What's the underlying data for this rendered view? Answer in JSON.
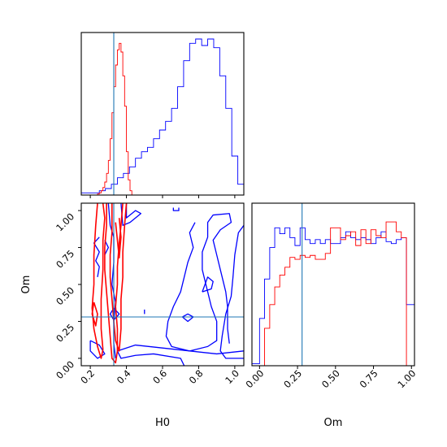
{
  "chart_data": {
    "type": "corner",
    "parameters": [
      "H0",
      "Om"
    ],
    "truths": {
      "H0": 0.33,
      "Om": 0.28
    },
    "colors": {
      "blue": "#0000ff",
      "red": "#ff0000",
      "truth": "#1f77b4"
    },
    "panels": {
      "h0_hist": {
        "xlim": [
          0.15,
          1.05
        ],
        "bins": [
          0.15,
          0.1833,
          0.2167,
          0.25,
          0.2833,
          0.3167,
          0.35,
          0.3833,
          0.4167,
          0.45,
          0.4833,
          0.5167,
          0.55,
          0.5833,
          0.6167,
          0.65,
          0.6833,
          0.7167,
          0.75,
          0.7833,
          0.8167,
          0.85,
          0.8833,
          0.9167,
          0.95,
          0.9833,
          1.0167,
          1.05
        ],
        "series": [
          {
            "color": "blue",
            "counts": [
              1,
              1,
              1,
              2,
              3,
              5,
              8,
              10,
              13,
              17,
              20,
              22,
              26,
              30,
              34,
              40,
              50,
              62,
              70,
              72,
              69,
              72,
              68,
              55,
              40,
              18,
              5
            ]
          }
        ],
        "red_series": {
          "color": "red",
          "bin_edges": [
            0.22,
            0.23,
            0.24,
            0.25,
            0.26,
            0.27,
            0.28,
            0.29,
            0.3,
            0.31,
            0.32,
            0.33,
            0.34,
            0.35,
            0.36,
            0.37,
            0.38,
            0.39,
            0.4,
            0.41,
            0.42,
            0.43,
            0.44
          ],
          "counts": [
            0,
            0,
            1,
            2,
            4,
            7,
            12,
            20,
            32,
            52,
            76,
            100,
            120,
            134,
            140,
            132,
            110,
            82,
            40,
            14,
            4,
            0
          ]
        }
      },
      "om_hist": {
        "xlim": [
          -0.05,
          1.02
        ],
        "tick_labels": [
          "0.00",
          "0.25",
          "0.50",
          "0.75",
          "1.00"
        ],
        "tick_values": [
          0,
          0.25,
          0.5,
          0.75,
          1.0
        ],
        "blue": {
          "bin_edges": [
            -0.05,
            0.0,
            0.033,
            0.067,
            0.1,
            0.133,
            0.167,
            0.2,
            0.233,
            0.267,
            0.3,
            0.333,
            0.367,
            0.4,
            0.433,
            0.467,
            0.5,
            0.533,
            0.567,
            0.6,
            0.633,
            0.667,
            0.7,
            0.733,
            0.767,
            0.8,
            0.833,
            0.867,
            0.9,
            0.933,
            0.967,
            1.0,
            1.02
          ],
          "counts": [
            2,
            48,
            88,
            120,
            140,
            134,
            140,
            130,
            122,
            140,
            128,
            124,
            128,
            124,
            128,
            124,
            124,
            130,
            136,
            130,
            128,
            130,
            128,
            124,
            130,
            136,
            126,
            124,
            128,
            130,
            62,
            62
          ]
        },
        "red": {
          "bin_edges": [
            -0.05,
            0.0,
            0.033,
            0.067,
            0.1,
            0.133,
            0.167,
            0.2,
            0.233,
            0.267,
            0.3,
            0.333,
            0.367,
            0.4,
            0.433,
            0.467,
            0.5,
            0.533,
            0.567,
            0.6,
            0.633,
            0.667,
            0.7,
            0.733,
            0.767,
            0.8,
            0.833,
            0.867,
            0.9,
            0.933,
            0.967,
            1.0,
            1.02
          ],
          "counts": [
            0,
            0,
            38,
            62,
            80,
            92,
            100,
            110,
            108,
            112,
            110,
            112,
            108,
            108,
            114,
            140,
            140,
            128,
            132,
            136,
            122,
            138,
            124,
            138,
            132,
            130,
            146,
            146,
            136,
            130,
            0,
            0
          ]
        }
      },
      "joint": {
        "xlim": [
          0.15,
          1.05
        ],
        "ylim": [
          -0.05,
          1.05
        ],
        "xtick_labels": [
          "0.2",
          "0.4",
          "0.6",
          "0.8",
          "1.0"
        ],
        "xtick_values": [
          0.2,
          0.4,
          0.6,
          0.8,
          1.0
        ],
        "ytick_labels": [
          "0.00",
          "0.25",
          "0.50",
          "0.75",
          "1.00"
        ],
        "ytick_values": [
          0,
          0.25,
          0.5,
          0.75,
          1.0
        ],
        "blue_contours": [
          [
            [
              0.72,
              -0.05
            ],
            [
              0.7,
              0.0
            ],
            [
              0.55,
              0.03
            ],
            [
              0.45,
              0.02
            ],
            [
              0.37,
              0.0
            ],
            [
              0.35,
              0.05
            ],
            [
              0.45,
              0.09
            ],
            [
              0.6,
              0.07
            ],
            [
              0.75,
              0.05
            ],
            [
              0.9,
              0.03
            ],
            [
              1.05,
              0.05
            ]
          ],
          [
            [
              1.05,
              0.9
            ],
            [
              1.02,
              0.85
            ],
            [
              1.0,
              0.7
            ],
            [
              0.99,
              0.55
            ],
            [
              0.98,
              0.42
            ],
            [
              0.95,
              0.3
            ],
            [
              0.93,
              0.15
            ],
            [
              0.92,
              0.05
            ],
            [
              0.95,
              0.0
            ],
            [
              1.05,
              0.0
            ]
          ],
          [
            [
              0.78,
              0.92
            ],
            [
              0.75,
              0.85
            ],
            [
              0.77,
              0.75
            ],
            [
              0.74,
              0.65
            ],
            [
              0.72,
              0.55
            ],
            [
              0.7,
              0.45
            ],
            [
              0.66,
              0.35
            ],
            [
              0.63,
              0.25
            ],
            [
              0.62,
              0.15
            ],
            [
              0.65,
              0.08
            ],
            [
              0.75,
              0.05
            ],
            [
              0.85,
              0.08
            ],
            [
              0.9,
              0.12
            ],
            [
              0.9,
              0.25
            ],
            [
              0.87,
              0.35
            ],
            [
              0.85,
              0.45
            ],
            [
              0.82,
              0.6
            ],
            [
              0.82,
              0.72
            ],
            [
              0.85,
              0.82
            ],
            [
              0.85,
              0.92
            ],
            [
              0.88,
              0.97
            ],
            [
              0.97,
              0.98
            ],
            [
              0.98,
              0.92
            ],
            [
              0.92,
              0.87
            ],
            [
              0.88,
              0.8
            ],
            [
              0.9,
              0.7
            ],
            [
              0.92,
              0.6
            ],
            [
              0.95,
              0.45
            ],
            [
              0.96,
              0.35
            ],
            [
              0.96,
              0.2
            ],
            [
              0.97,
              0.1
            ]
          ],
          [
            [
              0.82,
              0.45
            ],
            [
              0.85,
              0.55
            ],
            [
              0.88,
              0.52
            ],
            [
              0.87,
              0.47
            ],
            [
              0.82,
              0.45
            ]
          ],
          [
            [
              0.71,
              0.28
            ],
            [
              0.74,
              0.25
            ],
            [
              0.77,
              0.28
            ],
            [
              0.74,
              0.3
            ],
            [
              0.71,
              0.28
            ]
          ],
          [
            [
              0.3,
              1.05
            ],
            [
              0.31,
              0.9
            ],
            [
              0.33,
              0.82
            ],
            [
              0.33,
              0.65
            ],
            [
              0.32,
              0.5
            ],
            [
              0.34,
              0.38
            ],
            [
              0.33,
              0.25
            ],
            [
              0.33,
              0.1
            ],
            [
              0.34,
              0.0
            ]
          ],
          [
            [
              0.4,
              1.05
            ],
            [
              0.4,
              0.95
            ],
            [
              0.45,
              1.0
            ],
            [
              0.48,
              0.98
            ],
            [
              0.42,
              0.92
            ],
            [
              0.38,
              0.9
            ],
            [
              0.37,
              1.05
            ]
          ],
          [
            [
              0.25,
              0.82
            ],
            [
              0.22,
              0.78
            ],
            [
              0.25,
              0.72
            ],
            [
              0.23,
              0.66
            ],
            [
              0.25,
              0.62
            ],
            [
              0.24,
              0.55
            ]
          ],
          [
            [
              0.28,
              0.8
            ],
            [
              0.3,
              0.75
            ],
            [
              0.28,
              0.7
            ]
          ],
          [
            [
              0.2,
              0.12
            ],
            [
              0.25,
              0.09
            ],
            [
              0.28,
              0.03
            ],
            [
              0.24,
              0.0
            ],
            [
              0.2,
              0.05
            ],
            [
              0.2,
              0.12
            ]
          ],
          [
            [
              0.33,
              0.34
            ],
            [
              0.36,
              0.3
            ],
            [
              0.33,
              0.26
            ],
            [
              0.31,
              0.3
            ],
            [
              0.33,
              0.34
            ]
          ],
          [
            [
              0.5,
              0.33
            ],
            [
              0.5,
              0.3
            ]
          ],
          [
            [
              0.66,
              1.02
            ],
            [
              0.66,
              1.0
            ],
            [
              0.69,
              1.0
            ],
            [
              0.69,
              1.02
            ]
          ]
        ],
        "red_contours": [
          [
            [
              0.24,
              1.05
            ],
            [
              0.23,
              0.9
            ],
            [
              0.22,
              0.7
            ],
            [
              0.22,
              0.5
            ],
            [
              0.21,
              0.34
            ],
            [
              0.22,
              0.2
            ],
            [
              0.24,
              0.08
            ],
            [
              0.26,
              0.0
            ],
            [
              0.27,
              0.06
            ],
            [
              0.26,
              0.2
            ],
            [
              0.26,
              0.4
            ],
            [
              0.27,
              0.6
            ],
            [
              0.27,
              0.8
            ],
            [
              0.28,
              0.95
            ],
            [
              0.27,
              1.05
            ]
          ],
          [
            [
              0.29,
              1.05
            ],
            [
              0.29,
              0.9
            ],
            [
              0.28,
              0.75
            ],
            [
              0.28,
              0.6
            ],
            [
              0.29,
              0.45
            ],
            [
              0.3,
              0.3
            ],
            [
              0.31,
              0.15
            ],
            [
              0.32,
              0.0
            ],
            [
              0.34,
              -0.03
            ],
            [
              0.35,
              0.05
            ],
            [
              0.35,
              0.2
            ],
            [
              0.34,
              0.35
            ],
            [
              0.35,
              0.5
            ],
            [
              0.35,
              0.62
            ],
            [
              0.36,
              0.78
            ],
            [
              0.37,
              0.9
            ],
            [
              0.38,
              1.05
            ]
          ],
          [
            [
              0.32,
              1.05
            ],
            [
              0.32,
              0.85
            ],
            [
              0.31,
              0.7
            ],
            [
              0.31,
              0.55
            ],
            [
              0.32,
              0.4
            ],
            [
              0.33,
              0.25
            ],
            [
              0.34,
              0.12
            ],
            [
              0.36,
              0.05
            ],
            [
              0.37,
              0.2
            ],
            [
              0.37,
              0.4
            ],
            [
              0.38,
              0.55
            ],
            [
              0.38,
              0.72
            ],
            [
              0.39,
              0.9
            ],
            [
              0.4,
              1.05
            ]
          ],
          [
            [
              0.34,
              0.92
            ],
            [
              0.35,
              0.8
            ],
            [
              0.36,
              0.68
            ],
            [
              0.37,
              0.82
            ],
            [
              0.36,
              0.95
            ]
          ],
          [
            [
              0.22,
              0.38
            ],
            [
              0.24,
              0.3
            ],
            [
              0.23,
              0.22
            ],
            [
              0.21,
              0.3
            ],
            [
              0.22,
              0.38
            ]
          ]
        ]
      }
    },
    "xlabels": [
      "H0",
      "Om"
    ],
    "ylabels": [
      "Om"
    ]
  }
}
